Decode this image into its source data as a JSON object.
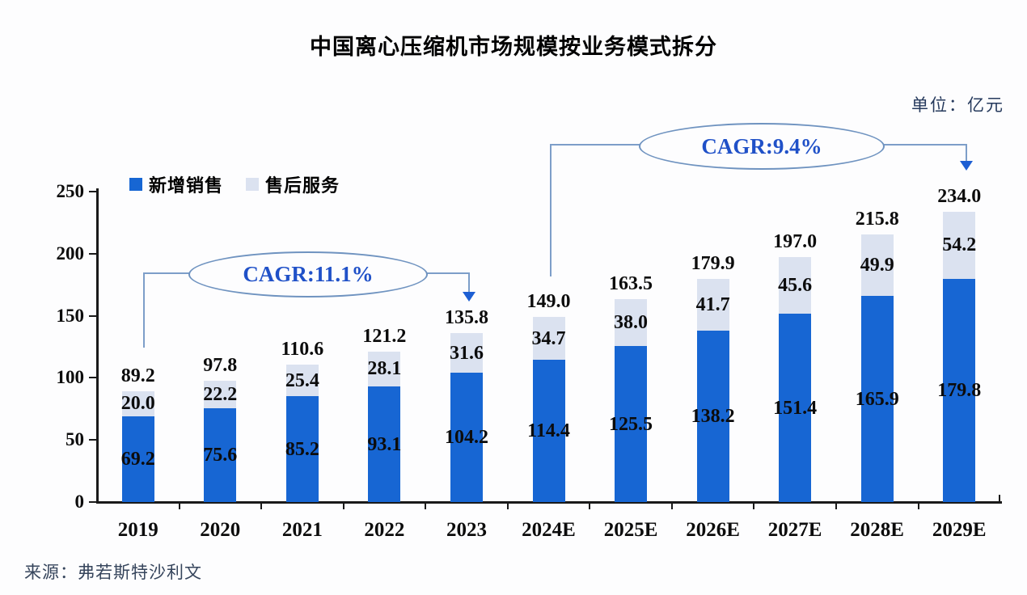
{
  "title": "中国离心压缩机市场规模按业务模式拆分",
  "unit_label": "单位：亿元",
  "source": "来源：弗若斯特沙利文",
  "colors": {
    "new_sales": "#1766d3",
    "after_service": "#dbe2f0",
    "axis": "#1a1a1a",
    "cagr_text": "#2051c8",
    "annotation_line": "#7d9ec9",
    "arrow": "#1d5fd3"
  },
  "legend": [
    {
      "label": "新增销售",
      "color": "#1766d3"
    },
    {
      "label": "售后服务",
      "color": "#dbe2f0"
    }
  ],
  "annotations": [
    {
      "label": "CAGR:11.1%",
      "from": "2019",
      "to": "2023"
    },
    {
      "label": "CAGR:9.4%",
      "from": "2024E",
      "to": "2029E"
    }
  ],
  "chart_data": {
    "type": "bar",
    "stacked": true,
    "categories": [
      "2019",
      "2020",
      "2021",
      "2022",
      "2023",
      "2024E",
      "2025E",
      "2026E",
      "2027E",
      "2028E",
      "2029E"
    ],
    "series": [
      {
        "name": "新增销售",
        "values": [
          69.2,
          75.6,
          85.2,
          93.1,
          104.2,
          114.4,
          125.5,
          138.2,
          151.4,
          165.9,
          179.8
        ]
      },
      {
        "name": "售后服务",
        "values": [
          20.0,
          22.2,
          25.4,
          28.1,
          31.6,
          34.7,
          38.0,
          41.7,
          45.6,
          49.9,
          54.2
        ]
      }
    ],
    "totals": [
      89.2,
      97.8,
      110.6,
      121.2,
      135.8,
      149.0,
      163.5,
      179.9,
      197.0,
      215.8,
      234.0
    ],
    "title": "中国离心压缩机市场规模按业务模式拆分",
    "xlabel": "",
    "ylabel": "",
    "ylim": [
      0,
      250
    ],
    "yticks": [
      0,
      50,
      100,
      150,
      200,
      250
    ],
    "grid": false,
    "legend_position": "top-left"
  }
}
